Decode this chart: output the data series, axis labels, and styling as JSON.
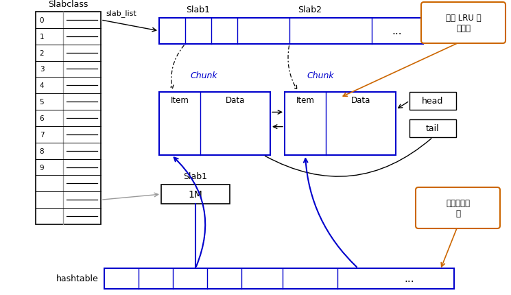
{
  "bg_color": "#ffffff",
  "blue": "#0000cc",
  "black": "#000000",
  "orange": "#cc6600",
  "gray": "#999999",
  "white": "#ffffff",
  "slabclass_label": "Slabclass",
  "slab_list_label": "slab_list",
  "slab1_label_top": "Slab1",
  "slab2_label_top": "Slab2",
  "chunk1_label": "Chunk",
  "chunk2_label": "Chunk",
  "item_label": "Item",
  "data_label": "Data",
  "head_label": "head",
  "tail_label": "tail",
  "slab1_label_mid": "Slab1",
  "onemb_label": "1M",
  "hashtable_label": "hashtable",
  "lru_label": "实现 LRU 策\n略队列",
  "search_label": "实现快速查\n找",
  "row_labels": [
    "0",
    "1",
    "2",
    "3",
    "4",
    "5",
    "6",
    "7",
    "8",
    "9",
    "",
    "",
    ""
  ],
  "figsize": [
    7.45,
    4.31
  ],
  "dpi": 100
}
